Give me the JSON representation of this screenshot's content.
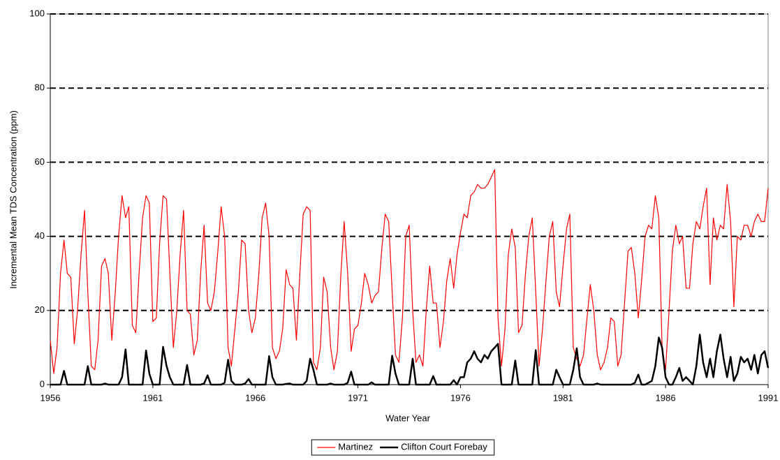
{
  "chart_data": {
    "type": "line",
    "xlabel": "Water Year",
    "ylabel": "Incremental Mean TDS Concentration (ppm)",
    "xlim": [
      1956,
      1991
    ],
    "xticks": [
      1956,
      1961,
      1966,
      1971,
      1976,
      1981,
      1986,
      1991
    ],
    "ylim": [
      0,
      100
    ],
    "yticks": [
      0,
      20,
      40,
      60,
      80,
      100
    ],
    "grid": true,
    "legend": "bottom",
    "x": [
      1956,
      1956.17,
      1956.33,
      1956.5,
      1956.67,
      1956.83,
      1957,
      1957.17,
      1957.33,
      1957.5,
      1957.67,
      1957.83,
      1958,
      1958.17,
      1958.33,
      1958.5,
      1958.67,
      1958.83,
      1959,
      1959.17,
      1959.33,
      1959.5,
      1959.67,
      1959.83,
      1960,
      1960.17,
      1960.33,
      1960.5,
      1960.67,
      1960.83,
      1961,
      1961.17,
      1961.33,
      1961.5,
      1961.67,
      1961.83,
      1962,
      1962.17,
      1962.33,
      1962.5,
      1962.67,
      1962.83,
      1963,
      1963.17,
      1963.33,
      1963.5,
      1963.67,
      1963.83,
      1964,
      1964.17,
      1964.33,
      1964.5,
      1964.67,
      1964.83,
      1965,
      1965.17,
      1965.33,
      1965.5,
      1965.67,
      1965.83,
      1966,
      1966.17,
      1966.33,
      1966.5,
      1966.67,
      1966.83,
      1967,
      1967.17,
      1967.33,
      1967.5,
      1967.67,
      1967.83,
      1968,
      1968.17,
      1968.33,
      1968.5,
      1968.67,
      1968.83,
      1969,
      1969.17,
      1969.33,
      1969.5,
      1969.67,
      1969.83,
      1970,
      1970.17,
      1970.33,
      1970.5,
      1970.67,
      1970.83,
      1971,
      1971.17,
      1971.33,
      1971.5,
      1971.67,
      1971.83,
      1972,
      1972.17,
      1972.33,
      1972.5,
      1972.67,
      1972.83,
      1973,
      1973.17,
      1973.33,
      1973.5,
      1973.67,
      1973.83,
      1974,
      1974.17,
      1974.33,
      1974.5,
      1974.67,
      1974.83,
      1975,
      1975.17,
      1975.33,
      1975.5,
      1975.67,
      1975.83,
      1976,
      1976.17,
      1976.33,
      1976.5,
      1976.67,
      1976.83,
      1977,
      1977.17,
      1977.33,
      1977.5,
      1977.67,
      1977.83,
      1978,
      1978.17,
      1978.33,
      1978.5,
      1978.67,
      1978.83,
      1979,
      1979.17,
      1979.33,
      1979.5,
      1979.67,
      1979.83,
      1980,
      1980.17,
      1980.33,
      1980.5,
      1980.67,
      1980.83,
      1981,
      1981.17,
      1981.33,
      1981.5,
      1981.67,
      1981.83,
      1982,
      1982.17,
      1982.33,
      1982.5,
      1982.67,
      1982.83,
      1983,
      1983.17,
      1983.33,
      1983.5,
      1983.67,
      1983.83,
      1984,
      1984.17,
      1984.33,
      1984.5,
      1984.67,
      1984.83,
      1985,
      1985.17,
      1985.33,
      1985.5,
      1985.67,
      1985.83,
      1986,
      1986.17,
      1986.33,
      1986.5,
      1986.67,
      1986.83,
      1987,
      1987.17,
      1987.33,
      1987.5,
      1987.67,
      1987.83,
      1988,
      1988.17,
      1988.33,
      1988.5,
      1988.67,
      1988.83,
      1989,
      1989.17,
      1989.33,
      1989.5,
      1989.67,
      1989.83,
      1990,
      1990.17,
      1990.33,
      1990.5,
      1990.67,
      1990.83,
      1991
    ],
    "series": [
      {
        "name": "Martinez",
        "color": "#ff0000",
        "values": [
          12,
          3,
          10,
          30,
          39,
          30,
          29,
          11,
          20,
          35,
          47,
          25,
          5,
          4,
          12,
          32,
          34,
          30,
          12,
          25,
          40,
          51,
          45,
          48,
          16,
          14,
          30,
          45,
          51,
          49,
          17,
          18,
          38,
          51,
          50,
          30,
          10,
          20,
          35,
          47,
          20,
          19,
          8,
          12,
          30,
          43,
          22,
          20,
          25,
          36,
          48,
          40,
          10,
          5,
          15,
          25,
          39,
          38,
          20,
          14,
          18,
          30,
          45,
          49,
          40,
          10,
          7,
          9,
          15,
          31,
          27,
          26,
          12,
          30,
          46,
          48,
          47,
          6,
          4,
          10,
          29,
          25,
          10,
          4,
          9,
          30,
          44,
          30,
          9,
          15,
          16,
          22,
          30,
          27,
          22,
          24,
          25,
          37,
          46,
          44,
          25,
          8,
          6,
          18,
          40,
          43,
          20,
          6,
          8,
          5,
          20,
          32,
          22,
          22,
          10,
          17,
          28,
          34,
          26,
          35,
          41,
          46,
          45,
          51,
          52,
          54,
          53,
          53,
          54,
          56,
          58,
          18,
          5,
          15,
          35,
          42,
          37,
          14,
          16,
          30,
          40,
          45,
          25,
          5,
          15,
          28,
          40,
          44,
          25,
          21,
          32,
          42,
          46,
          10,
          7,
          5,
          8,
          18,
          27,
          20,
          8,
          4,
          6,
          10,
          18,
          17,
          5,
          8,
          22,
          36,
          37,
          30,
          18,
          28,
          40,
          43,
          42,
          51,
          45,
          10,
          4,
          20,
          36,
          43,
          38,
          40,
          26,
          26,
          38,
          44,
          42,
          48,
          53,
          27,
          45,
          39,
          43,
          42,
          54,
          44,
          21,
          40,
          39,
          43,
          43,
          40,
          44,
          46,
          44,
          44,
          53
        ]
      },
      {
        "name": "Clifton Court Forebay",
        "color": "#000000",
        "values": [
          0,
          0,
          0,
          0,
          3.7,
          0,
          0,
          0,
          0,
          0,
          0,
          5,
          0,
          0,
          0,
          0,
          0.3,
          0,
          0,
          0,
          0,
          2,
          9.5,
          0,
          0,
          0,
          0,
          0,
          9.2,
          3,
          0,
          0,
          0,
          10.2,
          5,
          2,
          0,
          0,
          0,
          0,
          5.3,
          0,
          0,
          0,
          0,
          0.3,
          2.5,
          0,
          0,
          0,
          0,
          0.5,
          6.7,
          1,
          0,
          0,
          0,
          0.3,
          1.5,
          0,
          0,
          0,
          0,
          0,
          7.7,
          2,
          0,
          0,
          0,
          0.2,
          0.3,
          0,
          0,
          0,
          0,
          1,
          7,
          4,
          0,
          0,
          0,
          0,
          0.3,
          0,
          0,
          0,
          0,
          0.5,
          3.5,
          0,
          0,
          0,
          0,
          0,
          0.6,
          0,
          0,
          0,
          0,
          0,
          7.8,
          3,
          0,
          0,
          0,
          0,
          7,
          0,
          0,
          0,
          0,
          0,
          2.3,
          0,
          0,
          0,
          0,
          0,
          1.2,
          0,
          2,
          2,
          6,
          7,
          9,
          7,
          6,
          8,
          7,
          9,
          10,
          11,
          0,
          0,
          0,
          0,
          6.5,
          0,
          0,
          0,
          0,
          0,
          9.3,
          0,
          0,
          0,
          0,
          0,
          4,
          2,
          0,
          0,
          0,
          4,
          9.8,
          2,
          0,
          0,
          0,
          0,
          0.3,
          0,
          0,
          0,
          0,
          0,
          0,
          0,
          0,
          0,
          0,
          0.5,
          2.7,
          0,
          0,
          0.5,
          1,
          5,
          12.7,
          10,
          2,
          0,
          0,
          2,
          4.5,
          1,
          2,
          1,
          0,
          5,
          13.5,
          6,
          2,
          7,
          2,
          9,
          13.5,
          7,
          2,
          7.5,
          1,
          3,
          7.5,
          6,
          7,
          4,
          8,
          3,
          8,
          9,
          4.5
        ]
      }
    ]
  }
}
